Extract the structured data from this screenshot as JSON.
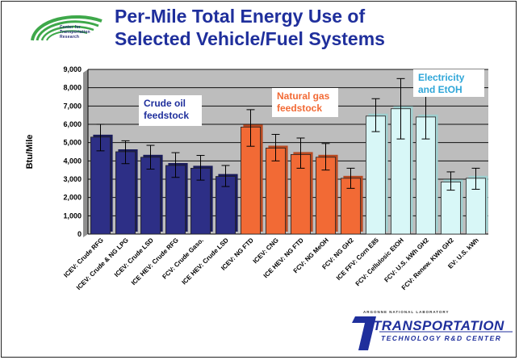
{
  "header": {
    "title_line1": "Per-Mile Total Energy Use of",
    "title_line2": "Selected Vehicle/Fuel Systems",
    "logo_text_line1": "Center for",
    "logo_text_line2": "Transportation Research"
  },
  "footer": {
    "small_text": "ARGONNE NATIONAL LABORATORY",
    "brand": "TRANSPORTATION",
    "brand_sub": "TECHNOLOGY R&D CENTER"
  },
  "colors": {
    "title": "#1f2f9c",
    "plot_bg": "#bdbdbd",
    "crude": "#2d2f86",
    "gas": "#f26a35",
    "electric": "#d8f7f7"
  },
  "chart_data": {
    "type": "bar",
    "title": "",
    "xlabel": "",
    "ylabel": "Btu/Mile",
    "ylim": [
      0,
      9000
    ],
    "yticks": [
      "0",
      "1,000",
      "2,000",
      "3,000",
      "4,000",
      "5,000",
      "6,000",
      "7,000",
      "8,000",
      "9,000"
    ],
    "grid": true,
    "error_bars": true,
    "categories": [
      "ICEV: Crude RFG",
      "ICEV: Crude & NG LPG",
      "ICEV: Crude LSD",
      "ICE HEV: Crude RFG",
      "FCV: Crude Gaso.",
      "ICE HEV: Crude LSD",
      "ICEV: NG FTD",
      "ICEV: CNG",
      "ICE HEV: NG FTD",
      "FCV: NG MeOH",
      "FCV: NG GH2",
      "ICE FFV: Corn E85",
      "FCV: Cellulosic EtOH",
      "FCV: U.S. kWh GH2",
      "FCV: Renew. KWh GH2",
      "EV: U.S. kWh"
    ],
    "groups": [
      0,
      0,
      0,
      0,
      0,
      0,
      1,
      1,
      1,
      1,
      1,
      2,
      2,
      2,
      2,
      2
    ],
    "values": [
      5300,
      4500,
      4200,
      3750,
      3600,
      3150,
      5850,
      4700,
      4350,
      4200,
      3050,
      6450,
      6850,
      6400,
      2850,
      3050
    ],
    "err_low": [
      4550,
      3850,
      3550,
      3100,
      2950,
      2600,
      4800,
      4000,
      3600,
      3500,
      2500,
      5600,
      5200,
      5200,
      2400,
      2450
    ],
    "err_high": [
      6000,
      5100,
      4850,
      4450,
      4300,
      3750,
      6800,
      5450,
      5250,
      4950,
      3600,
      7400,
      8500,
      7600,
      3400,
      3600
    ],
    "annotations": [
      {
        "lines": [
          "Crude oil",
          "feedstock"
        ],
        "color": "#1f2f9c"
      },
      {
        "lines": [
          "Natural gas",
          "feedstock"
        ],
        "color": "#f26a35"
      },
      {
        "lines": [
          "Electricity",
          "and EtOH"
        ],
        "color": "#2fa6d8"
      }
    ]
  }
}
